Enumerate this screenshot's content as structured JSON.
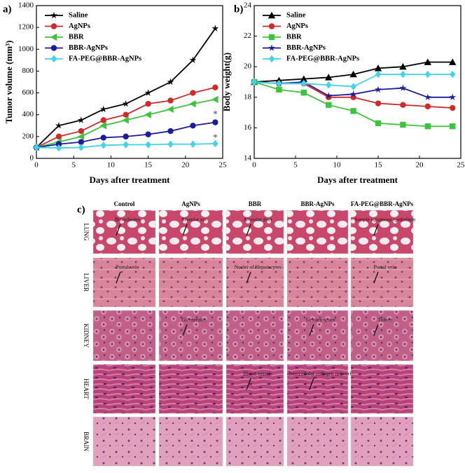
{
  "chart_data": [
    {
      "type": "line",
      "panel_label": "a)",
      "x_label": "Days after treatment",
      "y_label": "Tumor volume (mm³)",
      "x": [
        0,
        3,
        6,
        9,
        12,
        15,
        18,
        21,
        24
      ],
      "xlim": [
        0,
        25
      ],
      "xticks": [
        0,
        5,
        10,
        15,
        20,
        25
      ],
      "ylim": [
        0,
        1400
      ],
      "yticks": [
        0,
        200,
        400,
        600,
        800,
        1000,
        1200,
        1400
      ],
      "legend": "upper-left",
      "series": [
        {
          "name": "Saline",
          "color": "#000000",
          "marker": "star",
          "values": [
            100,
            300,
            350,
            450,
            500,
            600,
            700,
            900,
            1190
          ]
        },
        {
          "name": "AgNPs",
          "color": "#d12a2a",
          "marker": "circle",
          "values": [
            100,
            200,
            250,
            350,
            400,
            500,
            530,
            600,
            650
          ]
        },
        {
          "name": "BBR",
          "color": "#3cc43c",
          "marker": "triangle-left",
          "values": [
            100,
            150,
            200,
            300,
            350,
            400,
            450,
            500,
            540
          ]
        },
        {
          "name": "BBR-AgNPs",
          "color": "#1c1c9c",
          "marker": "circle",
          "values": [
            100,
            130,
            150,
            190,
            200,
            220,
            250,
            300,
            330
          ]
        },
        {
          "name": "FA-PEG@BBR-AgNPs",
          "color": "#3fd3ec",
          "marker": "diamond",
          "values": [
            100,
            95,
            100,
            120,
            125,
            125,
            130,
            130,
            135
          ]
        }
      ],
      "annotations": [
        {
          "text": "*",
          "x": 24,
          "y": 400
        },
        {
          "text": "*",
          "x": 24,
          "y": 185
        }
      ]
    },
    {
      "type": "line",
      "panel_label": "b)",
      "x_label": "Days after treatment",
      "y_label": "Body weight(g)",
      "x": [
        0,
        3,
        6,
        9,
        12,
        15,
        18,
        21,
        24
      ],
      "xlim": [
        0,
        25
      ],
      "xticks": [
        0,
        5,
        10,
        15,
        20,
        25
      ],
      "ylim": [
        14,
        24
      ],
      "yticks": [
        14,
        16,
        18,
        20,
        22,
        24
      ],
      "legend": "upper-left",
      "series": [
        {
          "name": "Saline",
          "color": "#000000",
          "marker": "triangle-up",
          "values": [
            19,
            19.1,
            19.2,
            19.3,
            19.5,
            19.9,
            20,
            20.3,
            20.3
          ]
        },
        {
          "name": "AgNPs",
          "color": "#d12a2a",
          "marker": "circle",
          "values": [
            19,
            18.9,
            18.9,
            18,
            18,
            17.6,
            17.5,
            17.4,
            17.3
          ]
        },
        {
          "name": "BBR",
          "color": "#3cc43c",
          "marker": "square",
          "values": [
            19,
            18.5,
            18.3,
            17.5,
            17.1,
            16.3,
            16.2,
            16.1,
            16.1
          ]
        },
        {
          "name": "BBR-AgNPs",
          "color": "#1c1c9c",
          "marker": "star",
          "values": [
            19,
            18.9,
            19,
            18.1,
            18.2,
            18.5,
            18.6,
            18,
            18
          ]
        },
        {
          "name": "FA-PEG@BBR-AgNPs",
          "color": "#3fd3ec",
          "marker": "diamond",
          "values": [
            19,
            18.9,
            18.9,
            18.8,
            18.7,
            19.5,
            19.5,
            19.5,
            19.5
          ]
        }
      ]
    }
  ],
  "histology": {
    "panel_label": "c)",
    "columns": [
      "Control",
      "AgNPs",
      "BBR",
      "BBR-AgNPs",
      "FA-PEG@BBR-AgNPs"
    ],
    "rows": [
      {
        "label": "LUNG",
        "notes": [
          "Bronchioles",
          "Alveolar sac",
          "Alveolar duct",
          null,
          "Simple squamous epithelium"
        ]
      },
      {
        "label": "LIVER",
        "notes": [
          "Portal vein",
          null,
          "Nuclei of Hepatocytes",
          null,
          "Portal vein"
        ]
      },
      {
        "label": "KIDNEY",
        "notes": [
          null,
          "Glomerulus",
          null,
          "Urinary space",
          "Tubule"
        ]
      },
      {
        "label": "HEART",
        "notes": [
          null,
          null,
          "Blood vessels",
          "Intercellular collagen network",
          null
        ]
      },
      {
        "label": "BRAIN",
        "notes": [
          null,
          null,
          null,
          null,
          null
        ]
      }
    ]
  }
}
